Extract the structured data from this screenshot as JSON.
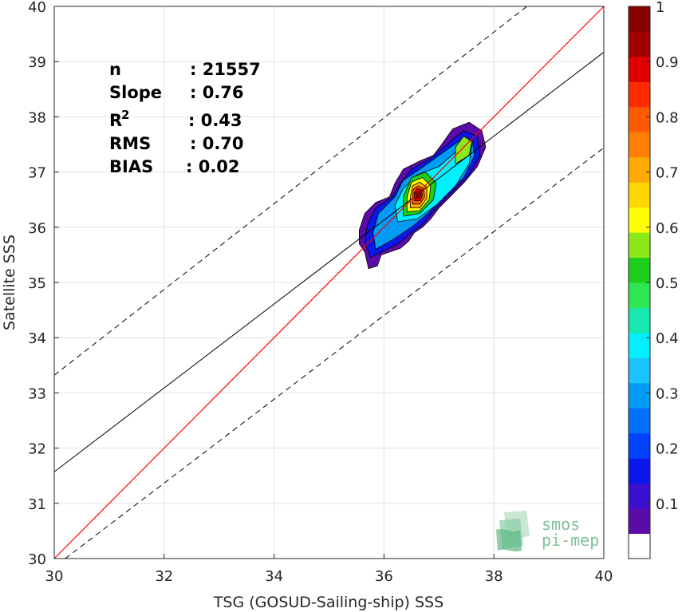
{
  "chart_data": {
    "type": "heatmap",
    "title": "",
    "xlabel": "TSG (GOSUD-Sailing-ship) SSS",
    "ylabel": "Satellite SSS",
    "xlim": [
      30,
      40
    ],
    "ylim": [
      30,
      40
    ],
    "xticks": [
      "30",
      "32",
      "34",
      "36",
      "38",
      "40"
    ],
    "yticks": [
      "30",
      "31",
      "32",
      "33",
      "34",
      "35",
      "36",
      "37",
      "38",
      "39",
      "40"
    ],
    "grid": true,
    "stats": [
      {
        "label": "n",
        "value": ": 21557"
      },
      {
        "label": "Slope",
        "value": ": 0.76"
      },
      {
        "label": "R",
        "sup": "2",
        "value": ": 0.43"
      },
      {
        "label": "RMS",
        "value": ": 0.70"
      },
      {
        "label": "BIAS",
        "value": ": 0.02"
      }
    ],
    "identity_line": {
      "from": [
        30,
        30
      ],
      "to": [
        40,
        40
      ],
      "color": "#ff0000"
    },
    "regression_line": {
      "from": [
        30,
        31.57
      ],
      "to": [
        40,
        39.17
      ],
      "color": "#000000"
    },
    "dashed_lines": [
      {
        "from": [
          30,
          33.32
        ],
        "to": [
          38.6,
          40
        ]
      },
      {
        "from": [
          30.2,
          30
        ],
        "to": [
          40,
          37.44
        ]
      }
    ],
    "density_contours": [
      {
        "level": 0.05,
        "points": [
          [
            35.72,
            35.25
          ],
          [
            35.88,
            35.3
          ],
          [
            35.95,
            35.5
          ],
          [
            36.1,
            35.55
          ],
          [
            36.3,
            35.62
          ],
          [
            36.45,
            35.75
          ],
          [
            36.55,
            35.9
          ],
          [
            36.7,
            36.0
          ],
          [
            36.85,
            36.15
          ],
          [
            37.0,
            36.35
          ],
          [
            37.2,
            36.55
          ],
          [
            37.45,
            36.8
          ],
          [
            37.7,
            37.1
          ],
          [
            37.85,
            37.45
          ],
          [
            37.78,
            37.75
          ],
          [
            37.55,
            37.9
          ],
          [
            37.25,
            37.78
          ],
          [
            37.05,
            37.5
          ],
          [
            36.9,
            37.3
          ],
          [
            36.65,
            37.2
          ],
          [
            36.35,
            37.05
          ],
          [
            36.2,
            36.8
          ],
          [
            36.1,
            36.55
          ],
          [
            35.85,
            36.45
          ],
          [
            35.65,
            36.25
          ],
          [
            35.55,
            35.95
          ],
          [
            35.55,
            35.7
          ],
          [
            35.65,
            35.55
          ]
        ]
      },
      {
        "level": 0.15,
        "points": [
          [
            35.75,
            35.45
          ],
          [
            35.95,
            35.55
          ],
          [
            36.25,
            35.7
          ],
          [
            36.5,
            35.9
          ],
          [
            36.7,
            36.05
          ],
          [
            36.95,
            36.35
          ],
          [
            37.25,
            36.65
          ],
          [
            37.55,
            36.95
          ],
          [
            37.75,
            37.3
          ],
          [
            37.7,
            37.65
          ],
          [
            37.45,
            37.75
          ],
          [
            37.15,
            37.5
          ],
          [
            36.85,
            37.25
          ],
          [
            36.5,
            37.05
          ],
          [
            36.3,
            36.8
          ],
          [
            36.15,
            36.55
          ],
          [
            35.85,
            36.35
          ],
          [
            35.7,
            36.05
          ],
          [
            35.65,
            35.75
          ]
        ]
      },
      {
        "level": 0.3,
        "points": [
          [
            35.85,
            35.6
          ],
          [
            36.2,
            35.8
          ],
          [
            36.5,
            36.0
          ],
          [
            36.8,
            36.25
          ],
          [
            37.1,
            36.55
          ],
          [
            37.45,
            36.9
          ],
          [
            37.65,
            37.3
          ],
          [
            37.6,
            37.6
          ],
          [
            37.35,
            37.55
          ],
          [
            37.0,
            37.3
          ],
          [
            36.65,
            37.05
          ],
          [
            36.35,
            36.85
          ],
          [
            36.2,
            36.55
          ],
          [
            35.9,
            36.25
          ],
          [
            35.8,
            35.9
          ]
        ]
      },
      {
        "level": 0.4,
        "points": [
          [
            36.25,
            36.1
          ],
          [
            36.6,
            36.15
          ],
          [
            36.95,
            36.4
          ],
          [
            37.3,
            36.75
          ],
          [
            37.55,
            37.15
          ],
          [
            37.6,
            37.5
          ],
          [
            37.35,
            37.4
          ],
          [
            37.0,
            37.1
          ],
          [
            36.6,
            36.95
          ],
          [
            36.35,
            36.7
          ],
          [
            36.2,
            36.4
          ]
        ]
      },
      {
        "level": 0.5,
        "points": [
          [
            36.35,
            36.2
          ],
          [
            36.65,
            36.25
          ],
          [
            36.9,
            36.5
          ],
          [
            36.95,
            36.8
          ],
          [
            36.75,
            37.0
          ],
          [
            36.5,
            36.9
          ],
          [
            36.35,
            36.55
          ]
        ]
      },
      {
        "level": 0.55,
        "points": [
          [
            37.3,
            37.15
          ],
          [
            37.55,
            37.3
          ],
          [
            37.6,
            37.55
          ],
          [
            37.45,
            37.65
          ],
          [
            37.3,
            37.45
          ]
        ]
      },
      {
        "level": 0.6,
        "points": [
          [
            36.42,
            36.28
          ],
          [
            36.65,
            36.3
          ],
          [
            36.82,
            36.5
          ],
          [
            36.85,
            36.75
          ],
          [
            36.7,
            36.9
          ],
          [
            36.5,
            36.82
          ],
          [
            36.42,
            36.55
          ]
        ]
      },
      {
        "level": 0.7,
        "points": [
          [
            36.48,
            36.35
          ],
          [
            36.65,
            36.35
          ],
          [
            36.78,
            36.52
          ],
          [
            36.78,
            36.72
          ],
          [
            36.65,
            36.82
          ],
          [
            36.52,
            36.75
          ],
          [
            36.48,
            36.55
          ]
        ]
      },
      {
        "level": 0.8,
        "points": [
          [
            36.52,
            36.42
          ],
          [
            36.65,
            36.42
          ],
          [
            36.74,
            36.55
          ],
          [
            36.72,
            36.7
          ],
          [
            36.62,
            36.75
          ],
          [
            36.53,
            36.68
          ]
        ]
      },
      {
        "level": 0.9,
        "points": [
          [
            36.56,
            36.48
          ],
          [
            36.66,
            36.48
          ],
          [
            36.7,
            36.58
          ],
          [
            36.68,
            36.68
          ],
          [
            36.6,
            36.7
          ],
          [
            36.55,
            36.62
          ]
        ]
      },
      {
        "level": 0.95,
        "points": [
          [
            36.59,
            36.53
          ],
          [
            36.65,
            36.53
          ],
          [
            36.67,
            36.6
          ],
          [
            36.63,
            36.65
          ],
          [
            36.58,
            36.62
          ]
        ]
      }
    ],
    "colorbar": {
      "ticks": [
        "0.1",
        "0.2",
        "0.3",
        "0.4",
        "0.5",
        "0.6",
        "0.7",
        "0.8",
        "0.9",
        "1"
      ],
      "range": [
        0,
        1
      ],
      "colors": [
        "#ffffff",
        "#5b0ba8",
        "#3a0fd0",
        "#0b16ea",
        "#0042ff",
        "#0070ff",
        "#009bf4",
        "#19c4ff",
        "#00f0ff",
        "#17e8b0",
        "#2ee64f",
        "#1dcf1a",
        "#8de81a",
        "#ffff00",
        "#ffd700",
        "#ffaa00",
        "#ff8000",
        "#ff5a00",
        "#ff2a00",
        "#e00000",
        "#a00000",
        "#880000"
      ]
    },
    "logo": {
      "line1": "smos",
      "line2": "pi-mep"
    }
  }
}
